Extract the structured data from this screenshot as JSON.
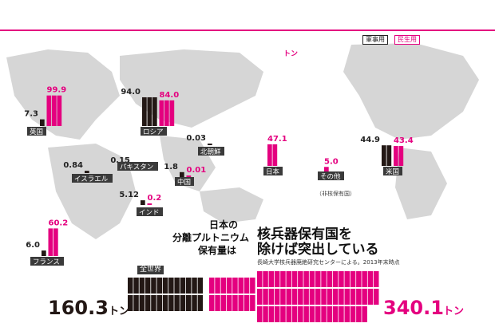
{
  "headline": {
    "line1": "日本の",
    "line2": "分離プルトニウム",
    "line3": "保有量は",
    "title1": "核兵器保有国を",
    "title2": "除けば突出している",
    "source": "長崎大学核兵器廃絶研究センターによる。2013年末時点"
  },
  "legend": {
    "military": "軍事用",
    "civilian": "民生用"
  },
  "colors": {
    "military": "#231815",
    "civilian": "#e4007f",
    "map": "#d6d6d6",
    "label_bg": "#3a3a3a"
  },
  "totals": {
    "world_label": "全世界",
    "military_total": "160.3",
    "civilian_total": "340.1",
    "unit": "トン",
    "military_total_value": 160.3,
    "civilian_total_value": 340.1
  },
  "chart_data": {
    "type": "bar",
    "unit": "トン",
    "categories": [
      "英国",
      "ロシア",
      "米国",
      "日本",
      "その他",
      "フランス",
      "イスラエル",
      "パキスタン",
      "インド",
      "中国",
      "北朝鮮"
    ],
    "series": [
      {
        "name": "軍事用",
        "values": [
          7.3,
          94.0,
          44.9,
          null,
          null,
          6.0,
          0.84,
          0.15,
          5.12,
          1.8,
          0.03
        ]
      },
      {
        "name": "民生用",
        "values": [
          99.9,
          84.0,
          43.4,
          47.1,
          5.0,
          60.2,
          null,
          null,
          0.2,
          0.01,
          null
        ]
      }
    ],
    "value_labels": {
      "英国": [
        "7.3",
        "99.9"
      ],
      "ロシア": [
        "94.0",
        "84.0"
      ],
      "米国": [
        "44.9",
        "43.4"
      ],
      "日本": [
        "",
        "47.1"
      ],
      "その他": [
        "",
        "5.0"
      ],
      "フランス": [
        "6.0",
        "60.2"
      ],
      "イスラエル": [
        "0.84",
        ""
      ],
      "パキスタン": [
        "0.15",
        ""
      ],
      "インド": [
        "5.12",
        "0.2"
      ],
      "中国": [
        "1.8",
        "0.01"
      ],
      "北朝鮮": [
        "0.03",
        ""
      ]
    },
    "notes": {
      "その他": "（非核保有国）",
      "日本_unit": "トン"
    }
  }
}
